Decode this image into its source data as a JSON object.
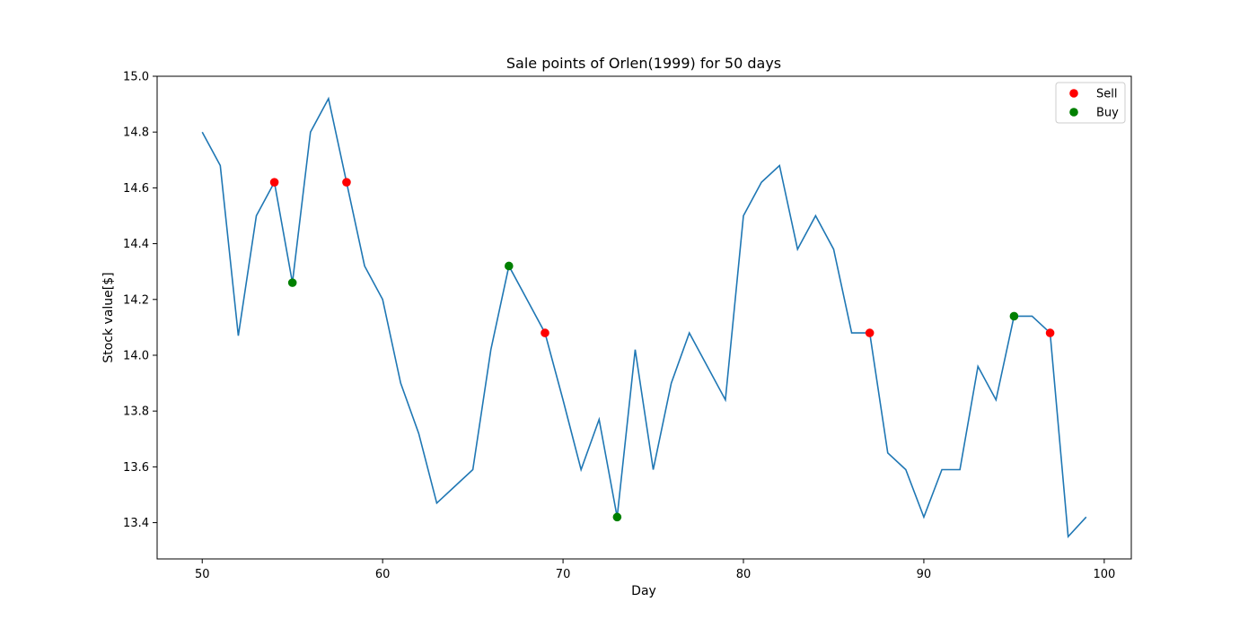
{
  "chart_data": {
    "type": "line",
    "title": "Sale points of Orlen(1999) for 50 days",
    "xlabel": "Day",
    "ylabel": "Stock value[$]",
    "xlim": [
      47.5,
      101.5
    ],
    "ylim": [
      13.27,
      15.0
    ],
    "xticks": [
      50,
      60,
      70,
      80,
      90,
      100
    ],
    "yticks": [
      13.4,
      13.6,
      13.8,
      14.0,
      14.2,
      14.4,
      14.6,
      14.8,
      15.0
    ],
    "ytick_labels": [
      "13.4",
      "13.6",
      "13.8",
      "14.0",
      "14.2",
      "14.4",
      "14.6",
      "14.8",
      "15.0"
    ],
    "grid": false,
    "legend_position": "top-right",
    "colors": {
      "line": "#1f77b4",
      "sell": "#ff0000",
      "buy": "#008000"
    },
    "x": [
      50,
      51,
      52,
      53,
      54,
      55,
      56,
      57,
      58,
      59,
      60,
      61,
      62,
      63,
      64,
      65,
      66,
      67,
      68,
      69,
      70,
      71,
      72,
      73,
      74,
      75,
      76,
      77,
      78,
      79,
      80,
      81,
      82,
      83,
      84,
      85,
      86,
      87,
      88,
      89,
      90,
      91,
      92,
      93,
      94,
      95,
      96,
      97,
      98,
      99
    ],
    "values": [
      14.8,
      14.68,
      14.07,
      14.5,
      14.62,
      14.26,
      14.8,
      14.92,
      14.62,
      14.32,
      14.2,
      13.9,
      13.72,
      13.47,
      13.53,
      13.59,
      14.02,
      14.32,
      14.2,
      14.08,
      13.84,
      13.59,
      13.77,
      13.42,
      14.02,
      13.59,
      13.9,
      14.08,
      13.96,
      13.84,
      14.5,
      14.62,
      14.68,
      14.38,
      14.5,
      14.38,
      14.08,
      14.08,
      13.65,
      13.59,
      13.42,
      13.59,
      13.59,
      13.96,
      13.84,
      14.14,
      14.14,
      14.08,
      13.35,
      13.42
    ],
    "series": [
      {
        "name": "Sell",
        "points": [
          [
            54,
            14.62
          ],
          [
            58,
            14.62
          ],
          [
            69,
            14.08
          ],
          [
            87,
            14.08
          ],
          [
            97,
            14.08
          ]
        ]
      },
      {
        "name": "Buy",
        "points": [
          [
            55,
            14.26
          ],
          [
            67,
            14.32
          ],
          [
            73,
            13.42
          ],
          [
            95,
            14.14
          ]
        ]
      }
    ]
  }
}
